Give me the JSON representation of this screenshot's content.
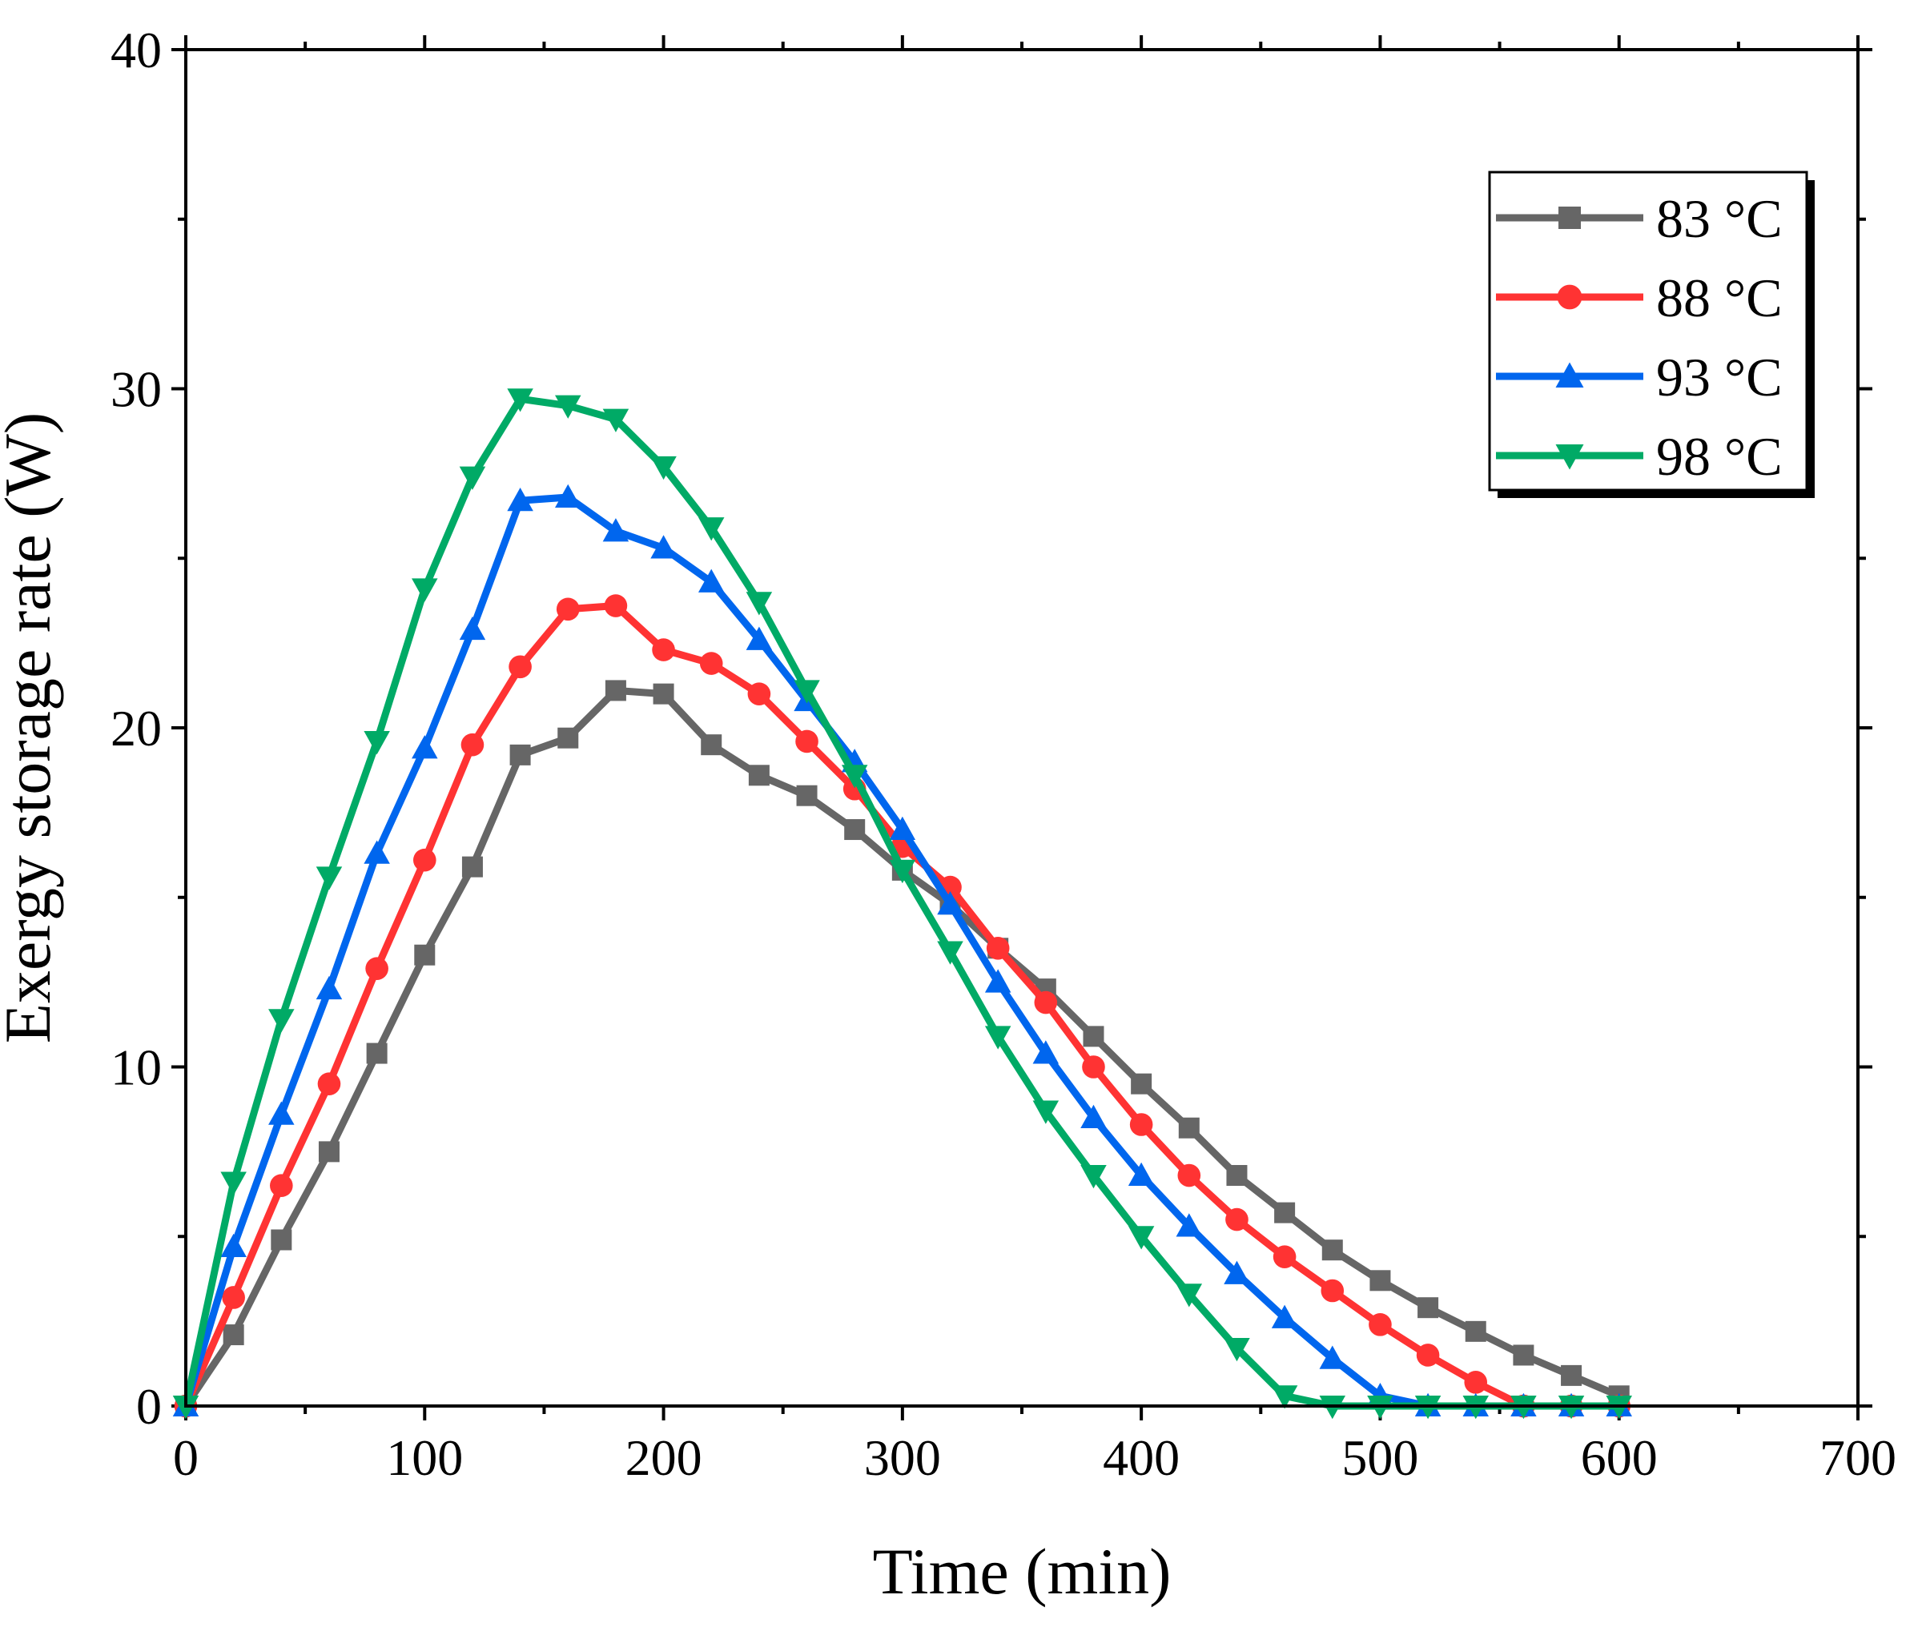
{
  "chart_data": {
    "type": "line",
    "title": "",
    "xlabel": "Time (min)",
    "ylabel": "Exergy storage rate (W)",
    "xlim": [
      0,
      700
    ],
    "ylim": [
      0,
      40
    ],
    "xticks": [
      0,
      100,
      200,
      300,
      400,
      500,
      600,
      700
    ],
    "yticks": [
      0,
      10,
      20,
      30,
      40
    ],
    "grid": false,
    "legend_position": "top-right",
    "x": [
      0,
      20,
      40,
      60,
      80,
      100,
      120,
      140,
      160,
      180,
      200,
      220,
      240,
      260,
      280,
      300,
      320,
      340,
      360,
      380,
      400,
      420,
      440,
      460,
      480,
      500,
      520,
      540,
      560,
      580,
      600
    ],
    "series": [
      {
        "name": "83 °C",
        "color": "#666666",
        "marker": "square",
        "values": [
          0.0,
          2.1,
          4.9,
          7.5,
          10.4,
          13.3,
          15.9,
          19.2,
          19.7,
          21.1,
          21.0,
          19.5,
          18.6,
          18.0,
          17.0,
          15.8,
          14.8,
          13.5,
          12.3,
          10.9,
          9.5,
          8.2,
          6.8,
          5.7,
          4.6,
          3.7,
          2.9,
          2.2,
          1.5,
          0.9,
          0.3
        ]
      },
      {
        "name": "88 °C",
        "color": "#ff3333",
        "marker": "circle",
        "values": [
          0.0,
          3.2,
          6.5,
          9.5,
          12.9,
          16.1,
          19.5,
          21.8,
          23.5,
          23.6,
          22.3,
          21.9,
          21.0,
          19.6,
          18.2,
          16.5,
          15.3,
          13.5,
          11.9,
          10.0,
          8.3,
          6.8,
          5.5,
          4.4,
          3.4,
          2.4,
          1.5,
          0.7,
          0.0,
          0.0,
          0.0
        ]
      },
      {
        "name": "93 °C",
        "color": "#0066ee",
        "marker": "triangle-up",
        "values": [
          0.0,
          4.7,
          8.6,
          12.3,
          16.3,
          19.4,
          22.9,
          26.7,
          26.8,
          25.8,
          25.3,
          24.3,
          22.6,
          20.8,
          19.0,
          17.0,
          14.8,
          12.5,
          10.4,
          8.5,
          6.8,
          5.3,
          3.9,
          2.6,
          1.4,
          0.3,
          0.0,
          0.0,
          0.0,
          0.0,
          0.0
        ]
      },
      {
        "name": "98 °C",
        "color": "#00aa66",
        "marker": "triangle-down",
        "values": [
          0.0,
          6.6,
          11.4,
          15.6,
          19.6,
          24.1,
          27.4,
          29.7,
          29.5,
          29.1,
          27.7,
          25.9,
          23.7,
          21.1,
          18.6,
          15.8,
          13.4,
          10.9,
          8.7,
          6.8,
          5.0,
          3.3,
          1.7,
          0.3,
          0.0,
          0.0,
          0.0,
          0.0,
          0.0,
          0.0,
          0.0
        ]
      }
    ]
  }
}
